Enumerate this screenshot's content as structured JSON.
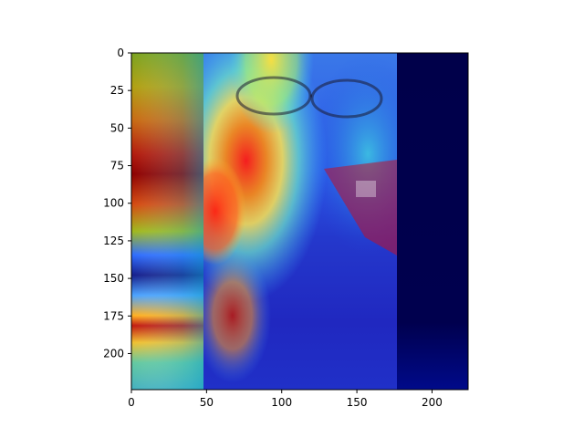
{
  "figure": {
    "image_description_hidden": "",
    "colormap": "jet"
  },
  "axes": {
    "x_ticks": [
      {
        "value": 0,
        "label": "0"
      },
      {
        "value": 50,
        "label": "50"
      },
      {
        "value": 100,
        "label": "100"
      },
      {
        "value": 150,
        "label": "150"
      },
      {
        "value": 200,
        "label": "200"
      }
    ],
    "y_ticks": [
      {
        "value": 0,
        "label": "0"
      },
      {
        "value": 25,
        "label": "25"
      },
      {
        "value": 50,
        "label": "50"
      },
      {
        "value": 75,
        "label": "75"
      },
      {
        "value": 100,
        "label": "100"
      },
      {
        "value": 125,
        "label": "125"
      },
      {
        "value": 150,
        "label": "150"
      },
      {
        "value": 175,
        "label": "175"
      },
      {
        "value": 200,
        "label": "200"
      }
    ],
    "xlim": [
      0,
      224
    ],
    "ylim": [
      224,
      0
    ]
  },
  "colors": {
    "background": "#ffffff",
    "axis": "#000000",
    "dark_blue": "#000050",
    "deep_red": "#8b0000",
    "red": "#ff2a1a",
    "yellow": "#ffe14a",
    "cyan": "#49d7e6",
    "blue": "#1f3be0"
  }
}
